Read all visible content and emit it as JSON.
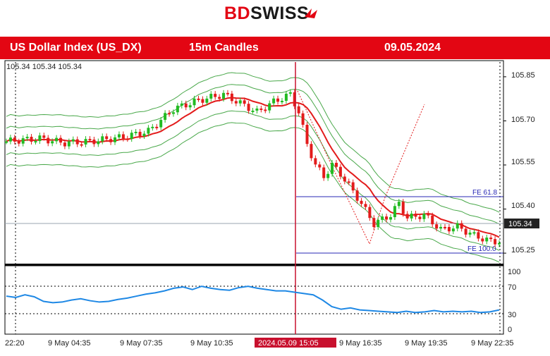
{
  "logo": {
    "part1": "BD",
    "part2": "SWISS"
  },
  "header": {
    "instrument": "US Dollar Index (US_DX)",
    "timeframe": "15m Candles",
    "date": "09.05.2024"
  },
  "chart_data": {
    "type": "candlestick",
    "ohlc_label": "105.34 105.34 105.34",
    "price_ticks": [
      "105.85",
      "105.70",
      "105.55",
      "105.40",
      "105.25"
    ],
    "current_price": "105.34",
    "time_labels": [
      "22:20",
      "9 May 04:35",
      "9 May 07:35",
      "9 May 10:35",
      "2024.05.09 15:05",
      "9 May 16:35",
      "9 May 19:35",
      "9 May 22:35"
    ],
    "annotations": [
      {
        "text": "FE 61.8"
      },
      {
        "text": "FE 100.0"
      }
    ],
    "oscillator_ticks": [
      "100",
      "70",
      "30",
      "0"
    ],
    "colors": {
      "bull": "#22bb22",
      "bear": "#e31b1b",
      "ma": "#e31b1b",
      "bands": "#49a84a",
      "oscillator": "#1e88e5",
      "fib": "#2727b5",
      "accent": "#e30613"
    }
  }
}
